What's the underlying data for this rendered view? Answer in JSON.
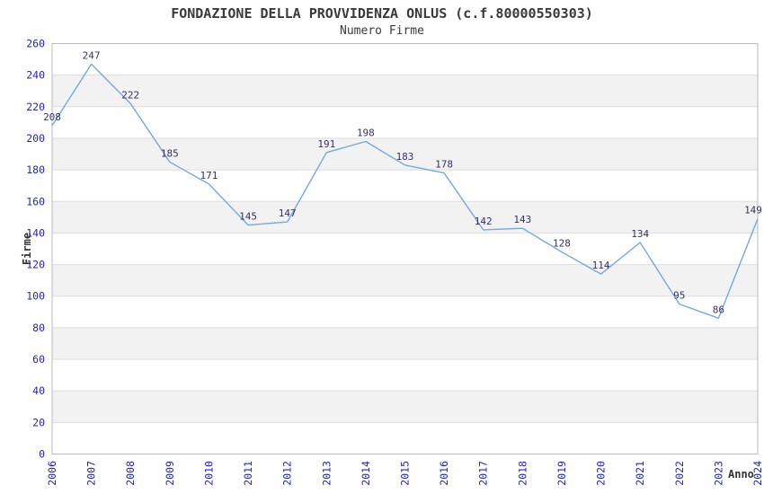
{
  "chart_data": {
    "type": "line",
    "title": "FONDAZIONE DELLA PROVVIDENZA ONLUS (c.f.80000550303)",
    "subtitle": "Numero Firme",
    "xlabel": "Anno",
    "ylabel": "Firme",
    "categories": [
      "2006",
      "2007",
      "2008",
      "2009",
      "2010",
      "2011",
      "2012",
      "2013",
      "2014",
      "2015",
      "2016",
      "2017",
      "2018",
      "2019",
      "2020",
      "2021",
      "2022",
      "2023",
      "2024"
    ],
    "values": [
      208,
      247,
      222,
      185,
      171,
      145,
      147,
      191,
      198,
      183,
      178,
      142,
      143,
      128,
      114,
      134,
      95,
      86,
      149
    ],
    "ylim": [
      0,
      260
    ],
    "ytick_step": 20,
    "grid": "horizontal",
    "bands": "alternating-20-units-white-first",
    "legend": "none",
    "point_labels_visible": true,
    "colors": {
      "line": "#74A9DE",
      "tick_labels": "#2222CC",
      "point_labels": "#333366",
      "band_alt": "#F2F2F2",
      "gridline": "#DDDDDD",
      "plot_border": "#BBBBBB",
      "title_text": "#3A3A3A",
      "background": "#FFFFFF"
    }
  }
}
